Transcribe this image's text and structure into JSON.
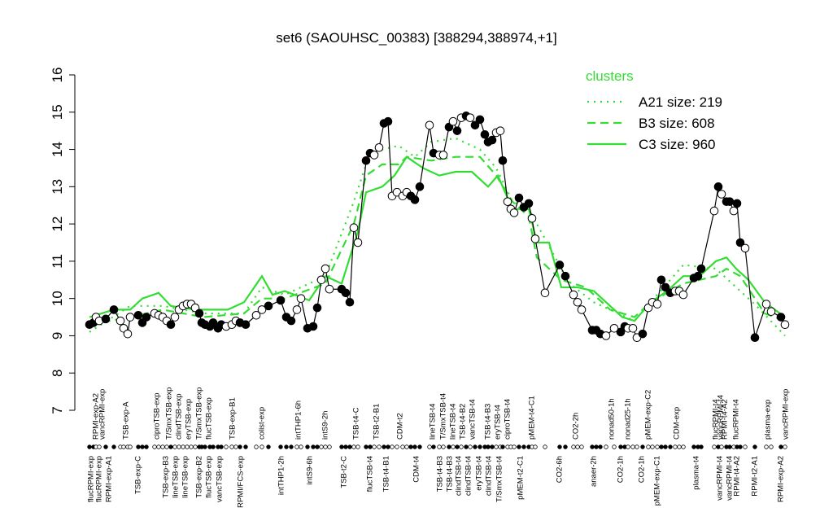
{
  "chart_data": {
    "type": "line",
    "title": "set6 (SAOUHSC_00383) [388294,388974,+1]",
    "ylim": [
      7,
      16
    ],
    "yticks": [
      7,
      8,
      9,
      10,
      11,
      12,
      13,
      14,
      15,
      16
    ],
    "xlim": [
      0,
      175
    ],
    "legend": {
      "title": "clusters",
      "position": "topright",
      "color": "#33dd33"
    },
    "series": [
      {
        "color": "#000000",
        "linestyle": "solid",
        "markers": true,
        "x": [
          2,
          3,
          3.6,
          4.4,
          6,
          8,
          9.6,
          10.4,
          11.4,
          12,
          14,
          15,
          16,
          18,
          19,
          20,
          21,
          22,
          23,
          24,
          25,
          26,
          27,
          28,
          29,
          29.6,
          30.4,
          31.6,
          32.4,
          33.6,
          34.4,
          35.6,
          37,
          38,
          39,
          40.4,
          43,
          44.4,
          46,
          49,
          50.4,
          51.6,
          53,
          54,
          55.6,
          57,
          58,
          59,
          60,
          61,
          64,
          65,
          66,
          67,
          68,
          70,
          71,
          72,
          73.2,
          74.4,
          75.4,
          76.4,
          77.6,
          79,
          80,
          81,
          82,
          83.2,
          85.6,
          86.6,
          88,
          89,
          90.4,
          91.4,
          92.4,
          93.4,
          94.6,
          95.6,
          96.8,
          98,
          99.2,
          100,
          101,
          102,
          103,
          103.6,
          104.8,
          105.6,
          106.4,
          107.6,
          108.8,
          110,
          110.8,
          111.6,
          114,
          117.6,
          119,
          121,
          122,
          123,
          125.6,
          126.6,
          127.6,
          129,
          131,
          132.6,
          133.6,
          134.4,
          135.6,
          136.6,
          138,
          139.4,
          140.4,
          141.6,
          142.6,
          143.6,
          144.8,
          146,
          147,
          148,
          150.6,
          151.6,
          152.4,
          155.6,
          156.6,
          157.4,
          158.6,
          159.4,
          160.4,
          161.2,
          162,
          163.2,
          165.6,
          168.4,
          169.6,
          172,
          173
        ],
        "values": [
          9.3,
          9.35,
          9.5,
          9.4,
          9.45,
          9.7,
          9.4,
          9.2,
          9.05,
          9.5,
          9.55,
          9.35,
          9.5,
          9.6,
          9.55,
          9.5,
          9.4,
          9.3,
          9.5,
          9.7,
          9.8,
          9.85,
          9.85,
          9.75,
          9.6,
          9.35,
          9.3,
          9.25,
          9.35,
          9.2,
          9.3,
          9.25,
          9.3,
          9.4,
          9.35,
          9.3,
          9.55,
          9.7,
          9.8,
          9.95,
          9.5,
          9.4,
          9.7,
          10.0,
          9.2,
          9.25,
          9.75,
          10.5,
          10.8,
          10.25,
          10.25,
          10.15,
          9.9,
          11.9,
          11.5,
          13.7,
          13.9,
          13.85,
          14.05,
          14.7,
          14.75,
          12.75,
          12.85,
          12.75,
          12.85,
          12.75,
          12.65,
          13.0,
          14.65,
          13.9,
          13.85,
          13.85,
          14.6,
          14.75,
          14.5,
          14.85,
          14.9,
          14.85,
          14.65,
          14.8,
          14.4,
          14.2,
          14.25,
          14.45,
          14.5,
          13.7,
          12.6,
          12.4,
          12.3,
          12.7,
          12.45,
          12.55,
          12.15,
          11.6,
          10.15,
          10.9,
          10.6,
          10.1,
          9.9,
          9.7,
          9.15,
          9.15,
          9.05,
          9.0,
          9.2,
          9.1,
          9.25,
          9.2,
          9.2,
          8.95,
          9.05,
          9.75,
          9.9,
          9.85,
          10.5,
          10.3,
          10.15,
          10.2,
          10.2,
          10.1,
          10.55,
          10.6,
          10.8,
          12.35,
          13.0,
          12.8,
          12.6,
          12.6,
          12.35,
          12.55,
          11.5,
          11.35,
          8.95,
          9.85,
          9.65,
          9.5,
          9.3
        ],
        "filled": [
          true,
          true,
          false,
          false,
          true,
          true,
          false,
          false,
          false,
          false,
          true,
          true,
          true,
          false,
          false,
          false,
          false,
          true,
          false,
          false,
          false,
          false,
          false,
          false,
          true,
          true,
          true,
          true,
          true,
          true,
          true,
          false,
          false,
          false,
          true,
          true,
          false,
          false,
          true,
          true,
          true,
          true,
          false,
          false,
          true,
          true,
          true,
          false,
          false,
          false,
          true,
          true,
          true,
          false,
          false,
          true,
          true,
          false,
          false,
          true,
          true,
          false,
          false,
          false,
          false,
          true,
          true,
          true,
          false,
          true,
          false,
          false,
          true,
          false,
          true,
          false,
          true,
          false,
          true,
          true,
          true,
          true,
          true,
          false,
          false,
          true,
          false,
          false,
          false,
          true,
          true,
          true,
          false,
          false,
          false,
          true,
          true,
          false,
          false,
          false,
          true,
          true,
          true,
          false,
          false,
          true,
          true,
          false,
          false,
          false,
          true,
          false,
          false,
          false,
          true,
          true,
          true,
          false,
          false,
          false,
          true,
          true,
          true,
          false,
          true,
          false,
          true,
          true,
          false,
          true,
          true,
          false,
          true,
          false,
          false,
          true,
          false
        ]
      },
      {
        "name": "A21 size: 219",
        "color": "#33dd33",
        "linestyle": "dotted",
        "x": [
          2,
          12,
          20,
          30,
          40,
          44.4,
          50,
          60,
          67,
          70,
          74,
          78,
          82,
          86,
          92,
          98,
          102,
          106,
          110,
          112,
          116,
          120,
          126,
          132,
          136,
          140,
          148,
          156,
          160,
          166,
          173
        ],
        "values": [
          9.1,
          9.8,
          9.8,
          9.6,
          9.6,
          10.3,
          10.1,
          10.6,
          12.6,
          13.6,
          14.0,
          14.1,
          13.8,
          14.2,
          14.3,
          14.0,
          13.5,
          12.6,
          12.4,
          12.0,
          11.2,
          10.4,
          9.9,
          9.6,
          9.4,
          9.9,
          10.9,
          10.8,
          10.4,
          9.8,
          9.0
        ]
      },
      {
        "name": "B3 size: 608",
        "color": "#33dd33",
        "linestyle": "dashed",
        "x": [
          2,
          12,
          20,
          30,
          40,
          44.4,
          50,
          60,
          67,
          70,
          74,
          78,
          80,
          86,
          92,
          98,
          102,
          106,
          110,
          112,
          118,
          124,
          130,
          136,
          140,
          148,
          156,
          158.6,
          162,
          168,
          173
        ],
        "values": [
          9.3,
          9.5,
          9.7,
          9.5,
          9.6,
          10.0,
          10.0,
          10.4,
          12.0,
          13.3,
          13.6,
          13.6,
          13.8,
          13.7,
          13.8,
          13.8,
          13.3,
          12.6,
          12.2,
          11.1,
          10.5,
          10.3,
          9.7,
          9.5,
          9.9,
          10.4,
          10.6,
          10.8,
          10.6,
          9.6,
          9.4
        ]
      },
      {
        "name": "C3 size: 960",
        "color": "#33dd33",
        "linestyle": "solid",
        "x": [
          2,
          8,
          12,
          15,
          19,
          22,
          28,
          36,
          40,
          44.4,
          47,
          50,
          56,
          60,
          64,
          68,
          70,
          74,
          77,
          80,
          84,
          88,
          92,
          96,
          100,
          102.4,
          106,
          110,
          112,
          115,
          118,
          122,
          126,
          130,
          133,
          136,
          140,
          144,
          148,
          152,
          156,
          158.6,
          161,
          164,
          168,
          173
        ],
        "values": [
          9.5,
          9.7,
          9.7,
          10.0,
          10.15,
          9.8,
          9.7,
          9.7,
          9.9,
          10.6,
          10.1,
          10.2,
          9.95,
          10.6,
          10.4,
          11.8,
          12.85,
          13.0,
          13.3,
          13.8,
          13.5,
          13.3,
          13.4,
          13.4,
          13.0,
          13.3,
          12.4,
          12.4,
          11.5,
          11.5,
          10.3,
          10.3,
          10.2,
          9.8,
          9.5,
          9.4,
          9.9,
          10.2,
          10.6,
          10.6,
          11.0,
          11.1,
          10.8,
          10.5,
          9.9,
          9.5
        ]
      }
    ],
    "top_labels": [
      {
        "value": 3.6,
        "label": "RPMI-exp-A2"
      },
      {
        "value": 5.2,
        "label": "vancRPMI-exp"
      },
      {
        "value": 11,
        "label": "TSB-exp-A"
      },
      {
        "value": 18.6,
        "label": "ciproTSB-exp"
      },
      {
        "value": 21.6,
        "label": "T/SmxTSB-exp"
      },
      {
        "value": 24,
        "label": "clindTSB-exp"
      },
      {
        "value": 26.4,
        "label": "eryTSB-exp"
      },
      {
        "value": 29,
        "label": "T/SmxTSB-exp"
      },
      {
        "value": 31.4,
        "label": "flucTSB-exp"
      },
      {
        "value": 37.2,
        "label": "TSB-exp-B1"
      },
      {
        "value": 44.4,
        "label": "colist-exp"
      },
      {
        "value": 53.4,
        "label": "intTHP1-6h"
      },
      {
        "value": 60,
        "label": "intS9-2h"
      },
      {
        "value": 67.6,
        "label": "TSB-t4-C"
      },
      {
        "value": 72.6,
        "label": "TSB-t2-B1"
      },
      {
        "value": 78.4,
        "label": "CDM-t2"
      },
      {
        "value": 86.4,
        "label": "lineTSB-t4"
      },
      {
        "value": 89,
        "label": "T/SmxTSB-t4"
      },
      {
        "value": 91.4,
        "label": "lineTSB-t4"
      },
      {
        "value": 93.8,
        "label": "TSB-t4-B2"
      },
      {
        "value": 96.2,
        "label": "vancTSB-t4"
      },
      {
        "value": 100,
        "label": "TSB-t4-B3"
      },
      {
        "value": 102.4,
        "label": "eryTSB-t4"
      },
      {
        "value": 104.8,
        "label": "ciproTSB-t4"
      },
      {
        "value": 110.8,
        "label": "pMEM-t4-C1"
      },
      {
        "value": 121.6,
        "label": "CO2-2h"
      },
      {
        "value": 130.4,
        "label": "nonad50-1h"
      },
      {
        "value": 134.4,
        "label": "nonad25-1h"
      },
      {
        "value": 139.4,
        "label": "pMEM-exp-C2"
      },
      {
        "value": 146.4,
        "label": "CDM-exp"
      },
      {
        "value": 156,
        "label": "flucRPMI-t4"
      },
      {
        "value": 157.2,
        "label": "vancRPMI-t4"
      },
      {
        "value": 158.2,
        "label": "RPMI-t4-A2"
      },
      {
        "value": 161,
        "label": "flucRPMI-t4"
      },
      {
        "value": 168.8,
        "label": "plasma-exp"
      },
      {
        "value": 173.2,
        "label": "vancRPMI-exp"
      }
    ],
    "bottom_labels": [
      {
        "value": 2.4,
        "label": "flucRPMI-exp"
      },
      {
        "value": 4.4,
        "label": "flucRPMI-exp"
      },
      {
        "value": 6.8,
        "label": "RPMI-exp-A1"
      },
      {
        "value": 14,
        "label": "TSB-exp-C"
      },
      {
        "value": 20.8,
        "label": "TSB-exp-B3"
      },
      {
        "value": 23.2,
        "label": "lineTSB-exp"
      },
      {
        "value": 25.6,
        "label": "lineTSB-exp"
      },
      {
        "value": 29,
        "label": "TSB-exp-B2"
      },
      {
        "value": 31.4,
        "label": "flucTSB-exp"
      },
      {
        "value": 34,
        "label": "vancTSB-exp"
      },
      {
        "value": 39.2,
        "label": "RPMI/FCS-exp"
      },
      {
        "value": 49.2,
        "label": "intTHP1-2h"
      },
      {
        "value": 56.2,
        "label": "intS9-6h"
      },
      {
        "value": 64.6,
        "label": "TSB-t2-C"
      },
      {
        "value": 71,
        "label": "flucTSB-t4"
      },
      {
        "value": 75,
        "label": "TSB-t4-B1"
      },
      {
        "value": 82.4,
        "label": "CDM-t4"
      },
      {
        "value": 88.2,
        "label": "TSB-t4-B3"
      },
      {
        "value": 90.6,
        "label": "TSB-t4-B3"
      },
      {
        "value": 92.8,
        "label": "clindTSB-t4"
      },
      {
        "value": 95.2,
        "label": "clindTSB-t4"
      },
      {
        "value": 97.8,
        "label": "eryTSB-t4"
      },
      {
        "value": 100.2,
        "label": "clindTSB-t4"
      },
      {
        "value": 102.8,
        "label": "T/SmxTSB-t4"
      },
      {
        "value": 108,
        "label": "pMEM-t2-C1"
      },
      {
        "value": 117.6,
        "label": "CO2-6h"
      },
      {
        "value": 126,
        "label": "anaer-2h"
      },
      {
        "value": 132.6,
        "label": "CO2-1h"
      },
      {
        "value": 137.8,
        "label": "CO2-1h"
      },
      {
        "value": 141.6,
        "label": "pMEM-exp-C1"
      },
      {
        "value": 151.2,
        "label": "plasma-t4"
      },
      {
        "value": 157,
        "label": "vancRPMI-t4"
      },
      {
        "value": 159.4,
        "label": "vancRPMI-t4"
      },
      {
        "value": 161.2,
        "label": "RPMI-t4-A2"
      },
      {
        "value": 165.6,
        "label": "RPMI-t2-A1"
      },
      {
        "value": 172,
        "label": "RPMI-exp-A2"
      }
    ]
  }
}
